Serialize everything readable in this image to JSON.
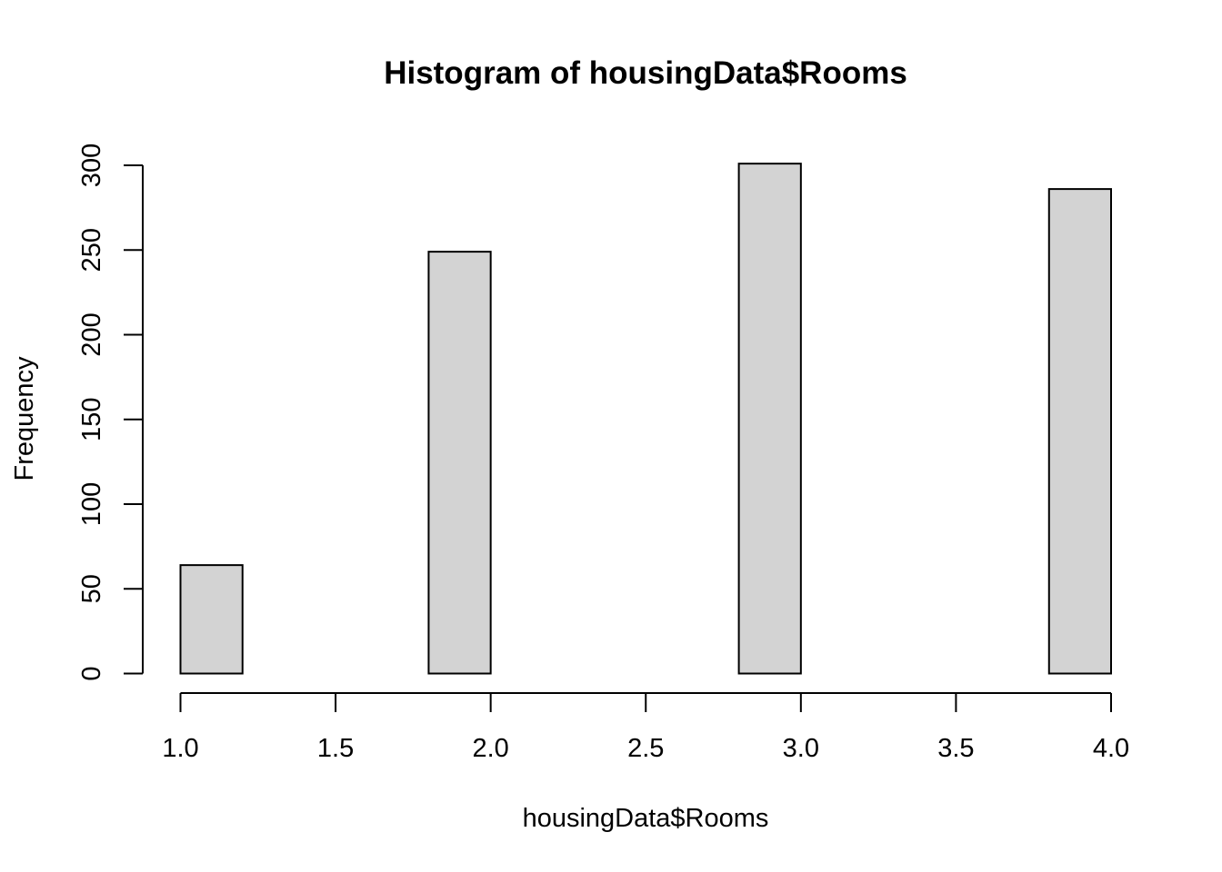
{
  "chart_data": {
    "type": "bar",
    "title": "Histogram of housingData$Rooms",
    "xlabel": "housingData$Rooms",
    "ylabel": "Frequency",
    "bin_edges": [
      1.0,
      1.2,
      1.4,
      1.6,
      1.8,
      2.0,
      2.2,
      2.4,
      2.6,
      2.8,
      3.0,
      3.2,
      3.4,
      3.6,
      3.8,
      4.0
    ],
    "values": [
      64,
      0,
      0,
      0,
      249,
      0,
      0,
      0,
      0,
      301,
      0,
      0,
      0,
      0,
      286
    ],
    "xlim": [
      1.0,
      4.0
    ],
    "ylim": [
      0,
      300
    ],
    "x_ticks": [
      "1.0",
      "1.5",
      "2.0",
      "2.5",
      "3.0",
      "3.5",
      "4.0"
    ],
    "y_ticks": [
      "0",
      "50",
      "100",
      "150",
      "200",
      "250",
      "300"
    ],
    "bar_color": "#d3d3d3",
    "grid": false
  }
}
